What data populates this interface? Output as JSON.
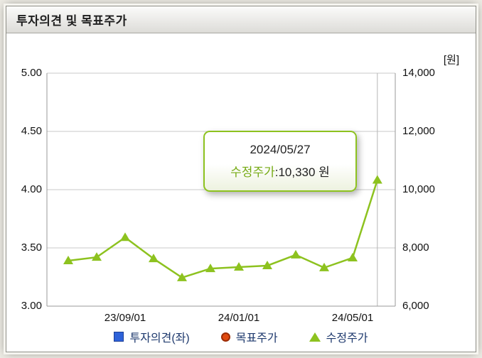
{
  "header": {
    "title": "투자의견 및 목표주가"
  },
  "tooltip": {
    "date": "2024/05/27",
    "series_label": "수정주가",
    "value_text": ":10,330 원"
  },
  "legend": {
    "items": [
      {
        "label": "투자의견(좌)",
        "marker": "square",
        "color": "#2e62d9"
      },
      {
        "label": "목표주가",
        "marker": "circle",
        "color": "#e04a10"
      },
      {
        "label": "수정주가",
        "marker": "triangle",
        "color": "#8dc21f"
      }
    ]
  },
  "chart_data": {
    "type": "line",
    "title": "투자의견 및 목표주가",
    "unit_label": "[원]",
    "grid": "horizontal",
    "legend_position": "bottom",
    "left_axis": {
      "min": 3.0,
      "max": 5.0,
      "ticks": [
        3.0,
        3.5,
        4.0,
        4.5,
        5.0
      ],
      "tick_labels": [
        "3.00",
        "3.50",
        "4.00",
        "4.50",
        "5.00"
      ]
    },
    "right_axis": {
      "min": 6000,
      "max": 14000,
      "ticks": [
        6000,
        8000,
        10000,
        12000,
        14000
      ],
      "tick_labels": [
        "6,000",
        "8,000",
        "10,000",
        "12,000",
        "14,000"
      ]
    },
    "x_ticks": [
      {
        "label": "23/09/01",
        "m": 2
      },
      {
        "label": "24/01/01",
        "m": 6
      },
      {
        "label": "24/05/01",
        "m": 10
      }
    ],
    "x_range": [
      -0.75,
      11.5
    ],
    "crosshair_m": 10.87,
    "series": [
      {
        "name": "수정주가",
        "color": "#8dc21f",
        "marker": "triangle",
        "axis": "right",
        "points": [
          {
            "date": "2023/07/01",
            "m": 0,
            "value": 7560
          },
          {
            "date": "2023/08/01",
            "m": 1,
            "value": 7680
          },
          {
            "date": "2023/09/01",
            "m": 2,
            "value": 8360
          },
          {
            "date": "2023/10/01",
            "m": 3,
            "value": 7630
          },
          {
            "date": "2023/11/01",
            "m": 4,
            "value": 6980
          },
          {
            "date": "2023/12/01",
            "m": 5,
            "value": 7290
          },
          {
            "date": "2024/01/01",
            "m": 6,
            "value": 7340
          },
          {
            "date": "2024/02/01",
            "m": 7,
            "value": 7390
          },
          {
            "date": "2024/03/01",
            "m": 8,
            "value": 7760
          },
          {
            "date": "2024/04/01",
            "m": 9,
            "value": 7320
          },
          {
            "date": "2024/05/01",
            "m": 10,
            "value": 7660
          },
          {
            "date": "2024/05/27",
            "m": 10.87,
            "value": 10330
          }
        ]
      },
      {
        "name": "투자의견(좌)",
        "color": "#2e62d9",
        "marker": "square",
        "axis": "left",
        "points": []
      },
      {
        "name": "목표주가",
        "color": "#e04a10",
        "marker": "circle",
        "axis": "right",
        "points": []
      }
    ]
  }
}
